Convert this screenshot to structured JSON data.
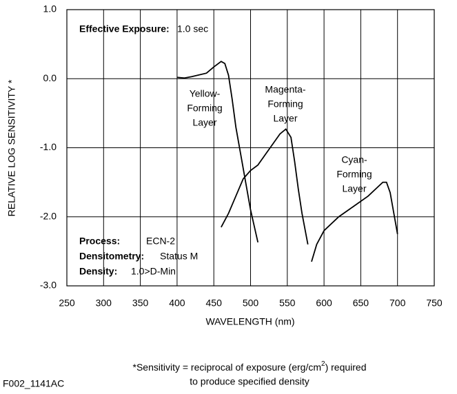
{
  "chart_data": {
    "type": "line",
    "y_label": "RELATIVE LOG SENSITIVITY *",
    "x_label": "WAVELENGTH (nm)",
    "xlim": [
      250,
      750
    ],
    "xticks": [
      250,
      300,
      350,
      400,
      450,
      500,
      550,
      600,
      650,
      700,
      750
    ],
    "ylim": [
      -3,
      1
    ],
    "yticks": [
      {
        "value": -3,
        "label": "-3.0"
      },
      {
        "value": -2,
        "label": "-2.0"
      },
      {
        "value": -1,
        "label": "-1.0"
      },
      {
        "value": 0,
        "label": "0.0"
      },
      {
        "value": 1,
        "label": "1.0"
      }
    ],
    "grid": true,
    "series": [
      {
        "label_lines": [
          "Yellow-",
          "Forming",
          "Layer"
        ],
        "color": "#000000",
        "x": [
          400,
          410,
          420,
          440,
          450,
          460,
          465,
          470,
          475,
          480,
          490,
          500,
          510
        ],
        "values": [
          0.02,
          0.01,
          0.03,
          0.08,
          0.17,
          0.25,
          0.22,
          0.05,
          -0.3,
          -0.7,
          -1.3,
          -1.9,
          -2.37
        ]
      },
      {
        "label_lines": [
          "Magenta-",
          "Forming",
          "Layer"
        ],
        "color": "#000000",
        "x": [
          460,
          470,
          480,
          490,
          500,
          510,
          520,
          530,
          540,
          548,
          555,
          560,
          565,
          570,
          578
        ],
        "values": [
          -2.15,
          -1.95,
          -1.7,
          -1.45,
          -1.33,
          -1.25,
          -1.1,
          -0.95,
          -0.8,
          -0.73,
          -0.85,
          -1.2,
          -1.6,
          -1.95,
          -2.4
        ]
      },
      {
        "label_lines": [
          "Cyan-",
          "Forming",
          "Layer"
        ],
        "color": "#000000",
        "x": [
          583,
          590,
          600,
          620,
          640,
          660,
          670,
          680,
          685,
          690,
          695,
          700
        ],
        "values": [
          -2.65,
          -2.4,
          -2.2,
          -2.0,
          -1.85,
          -1.7,
          -1.6,
          -1.5,
          -1.5,
          -1.65,
          -1.95,
          -2.25
        ]
      }
    ],
    "exposure": {
      "label": "Effective Exposure:",
      "value": "1.0 sec"
    },
    "conditions": [
      {
        "label": "Process:",
        "value": "ECN-2"
      },
      {
        "label": "Densitometry:",
        "value": "Status M"
      },
      {
        "label": "Density:",
        "value": "1.0>D-Min"
      }
    ],
    "footnote": {
      "line1_before": "*Sensitivity = reciprocal of exposure (erg/cm",
      "superscript": "2",
      "line1_after": ") required",
      "line2": "to produce specified density"
    },
    "figure_code": "F002_1141AC"
  }
}
